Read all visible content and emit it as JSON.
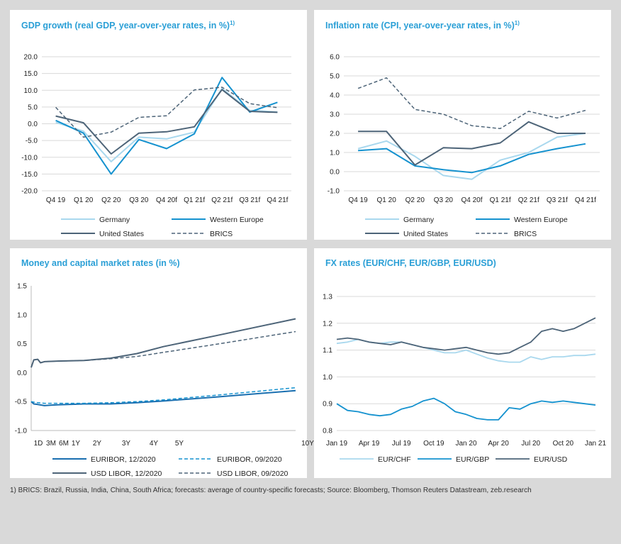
{
  "footnote": "1) BRICS: Brazil, Russia, India, China, South Africa; forecasts: average of country-specific forecasts; Source: Bloomberg, Thomson Reuters Datastream, zeb.research",
  "colors": {
    "germany": "#a9d8ee",
    "western_europe": "#1592cf",
    "united_states": "#4d6478",
    "brics": "#4d6478",
    "title": "#2a9fd6",
    "grid": "#d9d9d9"
  },
  "chart_data": [
    {
      "type": "line",
      "title": "GDP growth (real GDP, year-over-year rates, in %)",
      "title_sup": "1)",
      "categories": [
        "Q4 19",
        "Q1 20",
        "Q2 20",
        "Q3 20",
        "Q4 20f",
        "Q1 21f",
        "Q2 21f",
        "Q3 21f",
        "Q4 21f"
      ],
      "ylim": [
        -20,
        20
      ],
      "yticks": [
        "20.0",
        "15.0",
        "10.0",
        "5.0",
        "0.0",
        "-5.0",
        "-10.0",
        "-15.0",
        "-20.0"
      ],
      "grid": true,
      "legend_position": "bottom",
      "series": [
        {
          "name": "Germany",
          "values": [
            0.4,
            -2.2,
            -11.3,
            -4.0,
            -4.5,
            -2.5,
            10.5,
            4.0,
            3.5
          ],
          "style": "germany"
        },
        {
          "name": "Western Europe",
          "values": [
            1.0,
            -2.8,
            -15.0,
            -4.7,
            -7.4,
            -3.0,
            13.8,
            3.5,
            6.4
          ],
          "style": "western_europe"
        },
        {
          "name": "United States",
          "values": [
            2.3,
            0.3,
            -9.0,
            -2.8,
            -2.4,
            -0.9,
            10.2,
            3.7,
            3.4
          ],
          "style": "united_states"
        },
        {
          "name": "BRICS",
          "values": [
            4.9,
            -4.0,
            -2.5,
            1.9,
            2.4,
            10.1,
            10.9,
            6.0,
            4.8
          ],
          "style": "brics"
        }
      ]
    },
    {
      "type": "line",
      "title": "Inflation rate (CPI, year-over-year rates, in %)",
      "title_sup": "1)",
      "categories": [
        "Q4 19",
        "Q1 20",
        "Q2 20",
        "Q3 20",
        "Q4 20f",
        "Q1 21f",
        "Q2 21f",
        "Q3 21f",
        "Q4 21f"
      ],
      "ylim": [
        -1,
        6
      ],
      "yticks": [
        "6.0",
        "5.0",
        "4.0",
        "3.0",
        "2.0",
        "1.0",
        "0.0",
        "-1.0"
      ],
      "grid": true,
      "legend_position": "bottom",
      "series": [
        {
          "name": "Germany",
          "values": [
            1.2,
            1.6,
            0.8,
            -0.2,
            -0.4,
            0.6,
            1.0,
            1.8,
            2.0
          ],
          "style": "germany"
        },
        {
          "name": "Western Europe",
          "values": [
            1.1,
            1.2,
            0.3,
            0.1,
            -0.05,
            0.3,
            0.9,
            1.2,
            1.45
          ],
          "style": "western_europe"
        },
        {
          "name": "United States",
          "values": [
            2.1,
            2.1,
            0.35,
            1.25,
            1.2,
            1.5,
            2.6,
            2.0,
            2.0
          ],
          "style": "united_states"
        },
        {
          "name": "BRICS",
          "values": [
            4.35,
            4.9,
            3.25,
            3.0,
            2.4,
            2.25,
            3.15,
            2.8,
            3.2
          ],
          "style": "brics"
        }
      ]
    },
    {
      "type": "line",
      "title": "Money and capital market rates (in %)",
      "x_ticks": [
        "1D",
        "3M",
        "6M",
        "1Y",
        "2Y",
        "3Y",
        "4Y",
        "5Y",
        "10Y"
      ],
      "x_tick_positions": [
        0,
        0.25,
        0.5,
        1,
        2,
        3,
        4,
        5,
        10
      ],
      "xlim": [
        0,
        10
      ],
      "ylim": [
        -1,
        1.5
      ],
      "yticks": [
        "1.5",
        "1.0",
        "0.5",
        "0.0",
        "-0.5",
        "-1.0"
      ],
      "grid": false,
      "legend_position": "bottom",
      "series": [
        {
          "name": "EURIBOR, 12/2020",
          "style": "euribor_solid",
          "x": [
            0,
            0.1,
            0.25,
            0.5,
            0.8,
            1,
            2,
            3,
            4,
            5,
            7,
            10
          ],
          "values": [
            -0.5,
            -0.54,
            -0.55,
            -0.57,
            -0.56,
            -0.555,
            -0.54,
            -0.54,
            -0.52,
            -0.49,
            -0.42,
            -0.31
          ]
        },
        {
          "name": "EURIBOR, 09/2020",
          "style": "euribor_dashed",
          "x": [
            0,
            0.1,
            0.25,
            0.5,
            0.8,
            1,
            2,
            3,
            4,
            5,
            7,
            10
          ],
          "values": [
            -0.5,
            -0.51,
            -0.52,
            -0.53,
            -0.53,
            -0.53,
            -0.53,
            -0.52,
            -0.5,
            -0.47,
            -0.39,
            -0.26
          ]
        },
        {
          "name": "USD LIBOR, 12/2020",
          "style": "usd_solid",
          "x": [
            0,
            0.1,
            0.25,
            0.35,
            0.5,
            1,
            2,
            3,
            4,
            5,
            7,
            10
          ],
          "values": [
            0.09,
            0.22,
            0.23,
            0.17,
            0.19,
            0.2,
            0.21,
            0.25,
            0.33,
            0.45,
            0.64,
            0.93
          ]
        },
        {
          "name": "USD LIBOR, 09/2020",
          "style": "usd_dashed",
          "x": [
            0,
            0.1,
            0.25,
            0.35,
            0.5,
            1,
            2,
            3,
            4,
            5,
            7,
            10
          ],
          "values": [
            0.09,
            0.22,
            0.23,
            0.17,
            0.19,
            0.2,
            0.21,
            0.24,
            0.28,
            0.35,
            0.49,
            0.71
          ]
        }
      ]
    },
    {
      "type": "line",
      "title": "FX rates (EUR/CHF, EUR/GBP, EUR/USD)",
      "categories": [
        "Jan 19",
        "Apr 19",
        "Jul 19",
        "Oct 19",
        "Jan 20",
        "Apr 20",
        "Jul 20",
        "Oct 20",
        "Jan 21"
      ],
      "xlim": [
        0,
        24
      ],
      "ylim": [
        0.8,
        1.3
      ],
      "yticks": [
        "1.3",
        "1.2",
        "1.1",
        "1.0",
        "0.9",
        "0.8"
      ],
      "grid": true,
      "legend_position": "bottom",
      "series": [
        {
          "name": "EUR/CHF",
          "style": "chf",
          "x": [
            0,
            1,
            2,
            3,
            4,
            5,
            6,
            7,
            8,
            9,
            10,
            11,
            12,
            13,
            14,
            15,
            16,
            17,
            18,
            19,
            20,
            21,
            22,
            23,
            24
          ],
          "values": [
            1.125,
            1.13,
            1.14,
            1.13,
            1.125,
            1.13,
            1.13,
            1.12,
            1.11,
            1.1,
            1.09,
            1.09,
            1.1,
            1.085,
            1.07,
            1.06,
            1.055,
            1.055,
            1.075,
            1.065,
            1.075,
            1.075,
            1.08,
            1.08,
            1.085
          ]
        },
        {
          "name": "EUR/GBP",
          "style": "gbp",
          "x": [
            0,
            1,
            2,
            3,
            4,
            5,
            6,
            7,
            8,
            9,
            10,
            11,
            12,
            13,
            14,
            15,
            16,
            17,
            18,
            19,
            20,
            21,
            22,
            23,
            24
          ],
          "values": [
            0.9,
            0.875,
            0.87,
            0.86,
            0.855,
            0.86,
            0.88,
            0.89,
            0.91,
            0.92,
            0.9,
            0.87,
            0.86,
            0.845,
            0.84,
            0.84,
            0.885,
            0.88,
            0.9,
            0.91,
            0.905,
            0.91,
            0.905,
            0.9,
            0.895
          ]
        },
        {
          "name": "EUR/USD",
          "style": "usd",
          "x": [
            0,
            1,
            2,
            3,
            4,
            5,
            6,
            7,
            8,
            9,
            10,
            11,
            12,
            13,
            14,
            15,
            16,
            17,
            18,
            19,
            20,
            21,
            22,
            23,
            24
          ],
          "values": [
            1.14,
            1.145,
            1.14,
            1.13,
            1.125,
            1.12,
            1.13,
            1.12,
            1.11,
            1.105,
            1.1,
            1.105,
            1.11,
            1.1,
            1.09,
            1.085,
            1.09,
            1.11,
            1.13,
            1.17,
            1.18,
            1.17,
            1.18,
            1.2,
            1.22
          ]
        }
      ]
    }
  ]
}
